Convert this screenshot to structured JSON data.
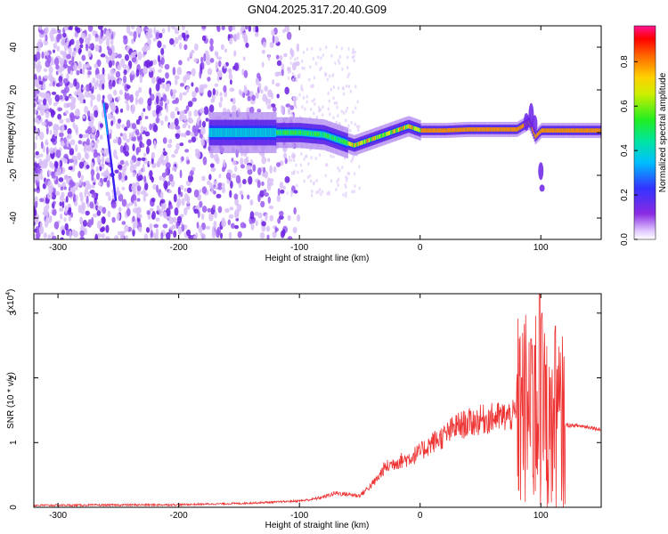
{
  "title": "GN04.2025.317.20.40.G09",
  "chart_data": [
    {
      "type": "heatmap",
      "title": "GN04.2025.317.20.40.G09",
      "xlabel": "Height of straight line (km)",
      "ylabel": "Frequency (Hz)",
      "xlim": [
        -320,
        150
      ],
      "ylim": [
        -50,
        50
      ],
      "x_ticks": [
        -300,
        -200,
        -100,
        0,
        100
      ],
      "y_ticks": [
        -40,
        -20,
        0,
        20,
        40
      ],
      "colorbar": {
        "label": "Normalized spectral amplitude",
        "range": [
          0,
          1
        ],
        "ticks": [
          "0.0",
          "0.2",
          "0.4",
          "0.6",
          "0.8"
        ]
      },
      "ridge": {
        "description_points_x": [
          -140,
          -120,
          -100,
          -80,
          -65,
          -55,
          -40,
          -20,
          -10,
          0,
          20,
          40,
          60,
          80,
          90,
          95,
          100,
          110,
          150
        ],
        "description_points_y": [
          0,
          0,
          0,
          -1,
          -4,
          -6,
          -3,
          1,
          3,
          1,
          1,
          1.5,
          1.5,
          1.5,
          5,
          -2,
          1,
          1,
          1
        ]
      },
      "streak": {
        "x_start": -262,
        "x_end": -252,
        "y_start": 14,
        "y_end": -32
      }
    },
    {
      "type": "line",
      "xlabel": "Height of straight line (km)",
      "ylabel": "SNR (10 * v/v)",
      "y_scale_label": "(x10",
      "y_scale_exp": "4",
      "y_scale_close": ")",
      "xlim": [
        -320,
        150
      ],
      "ylim": [
        0,
        3.3
      ],
      "x_ticks": [
        -300,
        -200,
        -100,
        0,
        100
      ],
      "y_ticks": [
        0,
        1,
        2,
        3
      ],
      "series": [
        {
          "name": "SNR",
          "color": "#ee3333",
          "envelope_x": [
            -320,
            -200,
            -150,
            -120,
            -100,
            -90,
            -80,
            -70,
            -60,
            -50,
            -40,
            -35,
            -30,
            -20,
            -10,
            0,
            10,
            20,
            30,
            40,
            50,
            60,
            70,
            80,
            85,
            90,
            95,
            100,
            105,
            110,
            115,
            120,
            130,
            140,
            150
          ],
          "envelope_y": [
            0.03,
            0.04,
            0.06,
            0.08,
            0.1,
            0.12,
            0.16,
            0.22,
            0.2,
            0.18,
            0.35,
            0.45,
            0.6,
            0.7,
            0.75,
            0.85,
            1.0,
            1.1,
            1.25,
            1.3,
            1.35,
            1.38,
            1.4,
            1.42,
            1.45,
            1.5,
            1.6,
            1.4,
            1.35,
            1.3,
            1.28,
            1.27,
            1.26,
            1.24,
            1.2
          ],
          "spikes": [
            [
              92,
              2.6
            ],
            [
              95,
              2.5
            ],
            [
              99,
              3.3
            ],
            [
              101,
              3.0
            ],
            [
              104,
              2.2
            ],
            [
              108,
              2.0
            ],
            [
              112,
              2.8
            ],
            [
              84,
              2.0
            ]
          ]
        }
      ]
    }
  ]
}
